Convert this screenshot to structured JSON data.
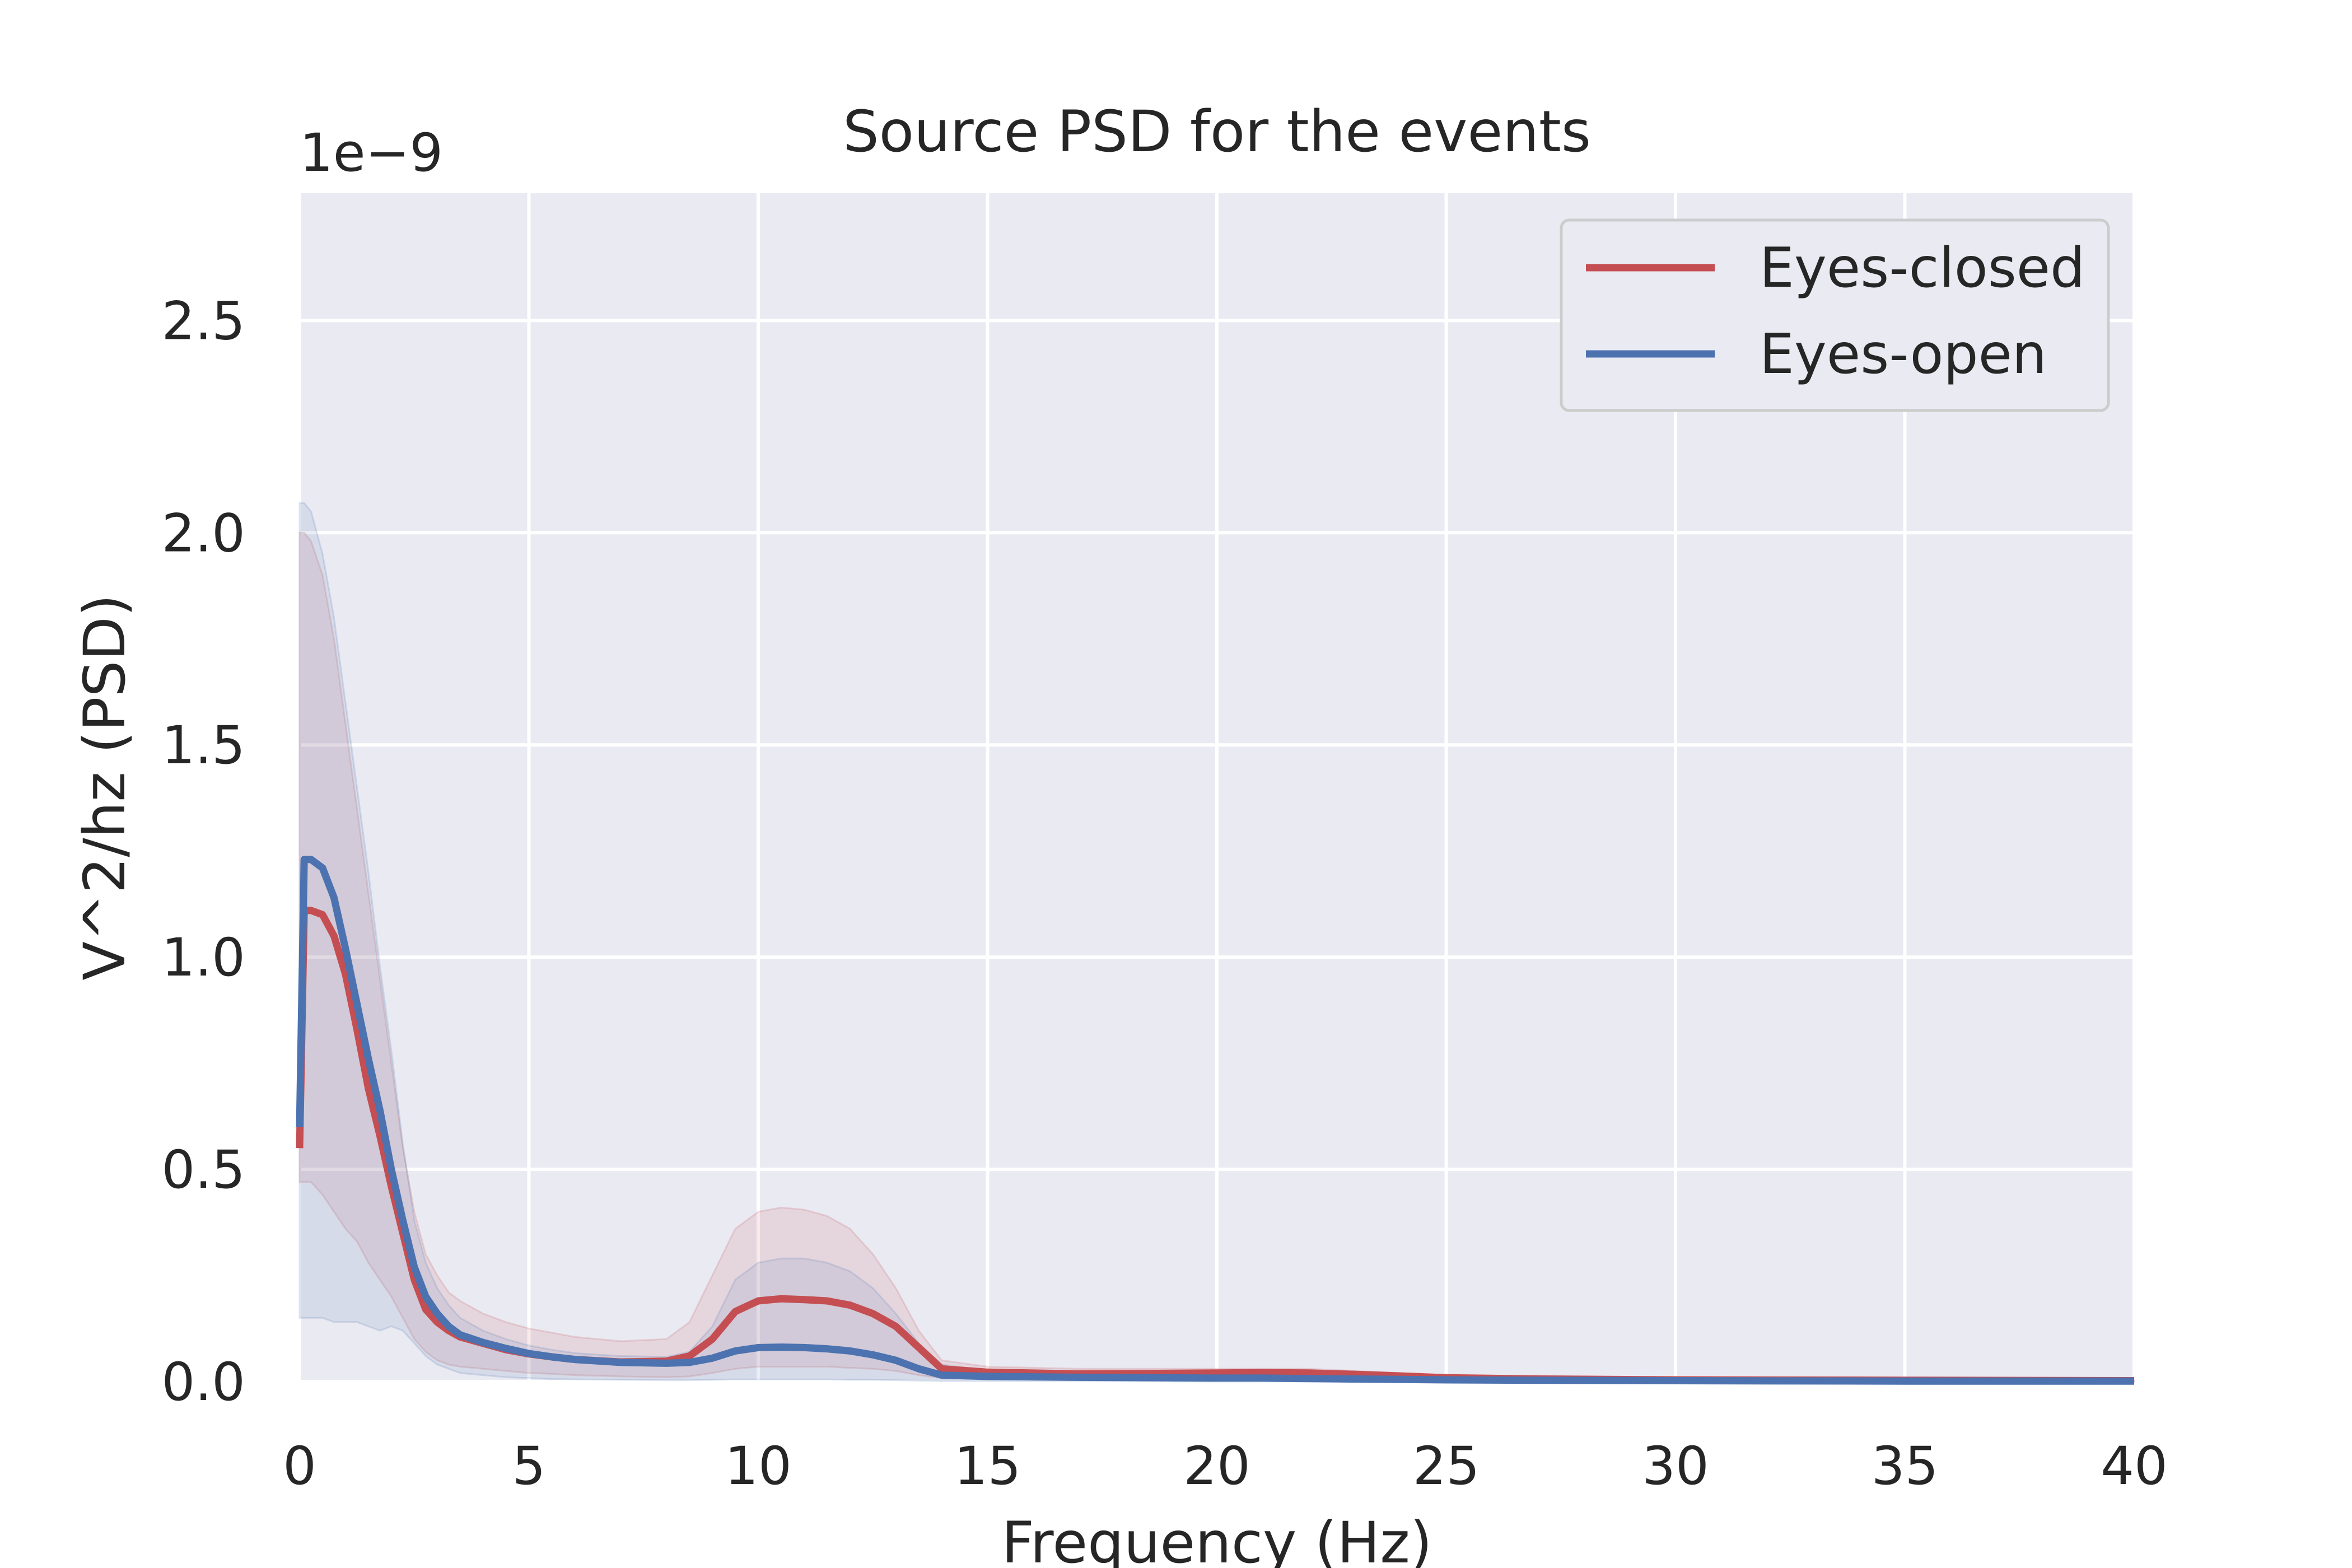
{
  "chart_data": {
    "type": "line",
    "title": "Source PSD for the events",
    "xlabel": "Frequency (Hz)",
    "ylabel": "V^2/hz (PSD)",
    "y_offset_text": "1e−9",
    "xlim": [
      0,
      40
    ],
    "ylim": [
      0,
      2.8
    ],
    "xticks": [
      0,
      5,
      10,
      15,
      20,
      25,
      30,
      35,
      40
    ],
    "xtick_labels": [
      "0",
      "5",
      "10",
      "15",
      "20",
      "25",
      "30",
      "35",
      "40"
    ],
    "yticks": [
      0,
      0.5,
      1.0,
      1.5,
      2.0,
      2.5
    ],
    "ytick_labels": [
      "0.0",
      "0.5",
      "1.0",
      "1.5",
      "2.0",
      "2.5"
    ],
    "grid": true,
    "legend_position": "top-right",
    "x": [
      0,
      0.1,
      0.25,
      0.5,
      0.75,
      1,
      1.25,
      1.5,
      1.75,
      2,
      2.25,
      2.5,
      2.75,
      3,
      3.25,
      3.5,
      4,
      4.5,
      5,
      5.5,
      6,
      7,
      8,
      8.5,
      9,
      9.5,
      10,
      10.5,
      11,
      11.5,
      12,
      12.5,
      13,
      13.5,
      14,
      15,
      17,
      20,
      21,
      22,
      23,
      24,
      25,
      27,
      30,
      35,
      40
    ],
    "series": [
      {
        "name": "Eyes-closed",
        "color": "#c44e52",
        "values": [
          0.55,
          1.11,
          1.11,
          1.1,
          1.05,
          0.96,
          0.83,
          0.69,
          0.58,
          0.46,
          0.35,
          0.24,
          0.17,
          0.14,
          0.12,
          0.105,
          0.09,
          0.075,
          0.065,
          0.058,
          0.052,
          0.046,
          0.048,
          0.06,
          0.1,
          0.165,
          0.19,
          0.195,
          0.193,
          0.19,
          0.18,
          0.16,
          0.13,
          0.08,
          0.03,
          0.022,
          0.018,
          0.02,
          0.021,
          0.02,
          0.017,
          0.013,
          0.009,
          0.006,
          0.004,
          0.003,
          0.002
        ],
        "ci_upper": [
          2.0,
          2.0,
          1.98,
          1.9,
          1.75,
          1.55,
          1.35,
          1.15,
          0.95,
          0.75,
          0.55,
          0.4,
          0.3,
          0.25,
          0.21,
          0.19,
          0.16,
          0.14,
          0.125,
          0.115,
          0.105,
          0.095,
          0.1,
          0.14,
          0.25,
          0.36,
          0.4,
          0.41,
          0.405,
          0.39,
          0.36,
          0.3,
          0.22,
          0.12,
          0.05,
          0.035,
          0.03,
          0.03,
          0.03,
          0.03,
          0.025,
          0.02,
          0.015,
          0.01,
          0.006,
          0.004,
          0.003
        ],
        "ci_lower": [
          0.47,
          0.47,
          0.47,
          0.44,
          0.4,
          0.36,
          0.33,
          0.28,
          0.24,
          0.2,
          0.15,
          0.1,
          0.07,
          0.05,
          0.04,
          0.035,
          0.03,
          0.025,
          0.02,
          0.018,
          0.015,
          0.012,
          0.01,
          0.012,
          0.02,
          0.03,
          0.035,
          0.035,
          0.035,
          0.035,
          0.032,
          0.03,
          0.025,
          0.015,
          0.008,
          0.006,
          0.005,
          0.005,
          0.005,
          0.005,
          0.004,
          0.003,
          0.002,
          0.001,
          0.001,
          0.001,
          0.0
        ]
      },
      {
        "name": "Eyes-open",
        "color": "#4c72b0",
        "values": [
          0.6,
          1.23,
          1.23,
          1.21,
          1.14,
          1.02,
          0.89,
          0.76,
          0.64,
          0.5,
          0.38,
          0.27,
          0.2,
          0.16,
          0.13,
          0.11,
          0.092,
          0.078,
          0.066,
          0.058,
          0.052,
          0.045,
          0.043,
          0.045,
          0.055,
          0.072,
          0.08,
          0.081,
          0.08,
          0.077,
          0.072,
          0.063,
          0.05,
          0.03,
          0.015,
          0.012,
          0.01,
          0.008,
          0.008,
          0.007,
          0.006,
          0.005,
          0.004,
          0.003,
          0.002,
          0.001,
          0.001
        ],
        "ci_upper": [
          2.07,
          2.07,
          2.05,
          1.95,
          1.8,
          1.6,
          1.4,
          1.2,
          0.98,
          0.78,
          0.56,
          0.38,
          0.28,
          0.22,
          0.18,
          0.15,
          0.12,
          0.1,
          0.085,
          0.075,
          0.067,
          0.06,
          0.058,
          0.07,
          0.13,
          0.24,
          0.28,
          0.29,
          0.29,
          0.28,
          0.26,
          0.22,
          0.16,
          0.09,
          0.04,
          0.025,
          0.02,
          0.015,
          0.015,
          0.013,
          0.011,
          0.009,
          0.007,
          0.005,
          0.003,
          0.002,
          0.002
        ],
        "ci_lower": [
          0.15,
          0.15,
          0.15,
          0.15,
          0.14,
          0.14,
          0.14,
          0.13,
          0.12,
          0.13,
          0.12,
          0.09,
          0.06,
          0.04,
          0.03,
          0.02,
          0.015,
          0.01,
          0.008,
          0.006,
          0.005,
          0.004,
          0.003,
          0.003,
          0.004,
          0.005,
          0.005,
          0.005,
          0.005,
          0.005,
          0.004,
          0.004,
          0.003,
          0.002,
          0.001,
          0.001,
          0.001,
          0.0,
          0.0,
          0.0,
          0.0,
          0.0,
          0.0,
          0.0,
          0.0,
          0.0,
          0.0
        ]
      }
    ]
  }
}
